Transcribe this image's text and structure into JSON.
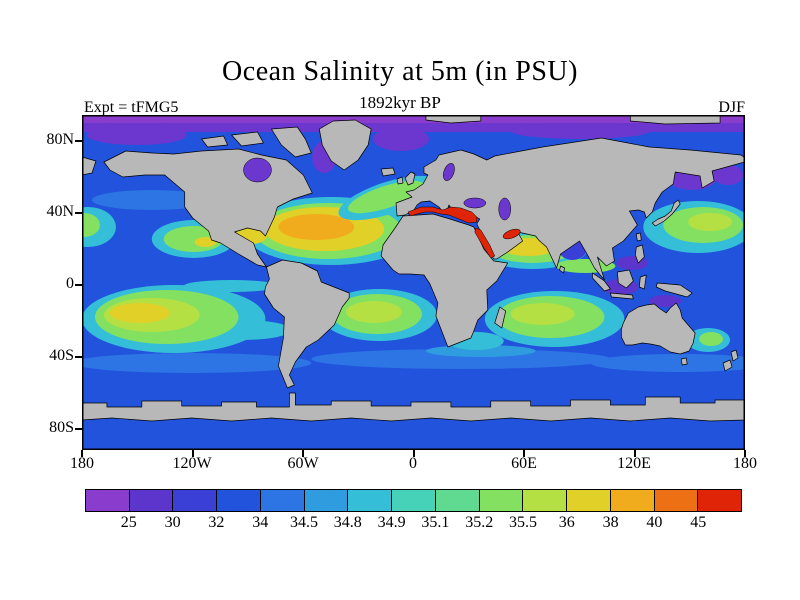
{
  "header": {
    "title": "Ocean Salinity at 5m (in PSU)",
    "subtitle": "1892kyr BP",
    "experiment_label": "Expt = tFMG5",
    "season_label": "DJF"
  },
  "chart_data": {
    "type": "heatmap",
    "title": "Ocean Salinity at 5m (in PSU)",
    "subtitle": "1892kyr BP",
    "experiment": "tFMG5",
    "season": "DJF",
    "variable": "Ocean Salinity",
    "depth": "5m",
    "units": "PSU",
    "projection": "global lat-lon map",
    "x_axis": {
      "ticks": [
        "180",
        "120W",
        "60W",
        "0",
        "60E",
        "120E",
        "180"
      ],
      "range_deg": [
        -180,
        180
      ]
    },
    "y_axis": {
      "ticks": [
        "80N",
        "40N",
        "0",
        "40S",
        "80S"
      ],
      "range_deg": [
        -90,
        90
      ]
    },
    "colorbar": {
      "levels": [
        "25",
        "30",
        "32",
        "34",
        "34.5",
        "34.8",
        "34.9",
        "35.1",
        "35.2",
        "35.5",
        "36",
        "38",
        "40",
        "45"
      ],
      "colors": [
        "#8a3ccc",
        "#5c35cc",
        "#3a3fd6",
        "#2253dd",
        "#2d74e4",
        "#309ce0",
        "#35bed8",
        "#45d2b8",
        "#60da90",
        "#84e060",
        "#b4e044",
        "#e0d028",
        "#f0ac1c",
        "#ee7014",
        "#e02408"
      ],
      "open_ended": "lowest bin < 25 PSU, highest bin > 45 PSU"
    },
    "land_color": "#b8b8b8",
    "regions": [
      {
        "region": "Arctic Ocean and marginal seas",
        "psu": "< 30"
      },
      {
        "region": "Hudson Bay, Baltic, Black Sea, Caspian",
        "psu": "25-30"
      },
      {
        "region": "Open ocean background",
        "psu": "34-35.2"
      },
      {
        "region": "North Atlantic subtropical gyre",
        "psu": "36-38"
      },
      {
        "region": "Mediterranean Sea",
        "psu": "40-45"
      },
      {
        "region": "Red Sea and Persian Gulf",
        "psu": "> 40"
      },
      {
        "region": "Arabian Sea",
        "psu": "36-38"
      },
      {
        "region": "South Atlantic gyre",
        "psu": "35.5-36"
      },
      {
        "region": "South Pacific gyre",
        "psu": "35.5-36"
      },
      {
        "region": "South Indian gyre",
        "psu": "35.5-36"
      },
      {
        "region": "North Pacific gyres",
        "psu": "35.2-36"
      },
      {
        "region": "Western Pacific warm pool / Indonesian seas",
        "psu": "30-34"
      },
      {
        "region": "Southern Ocean",
        "psu": "34-34.8"
      },
      {
        "region": "Antarctica / sea-ice band",
        "psu": "land mask"
      }
    ]
  }
}
